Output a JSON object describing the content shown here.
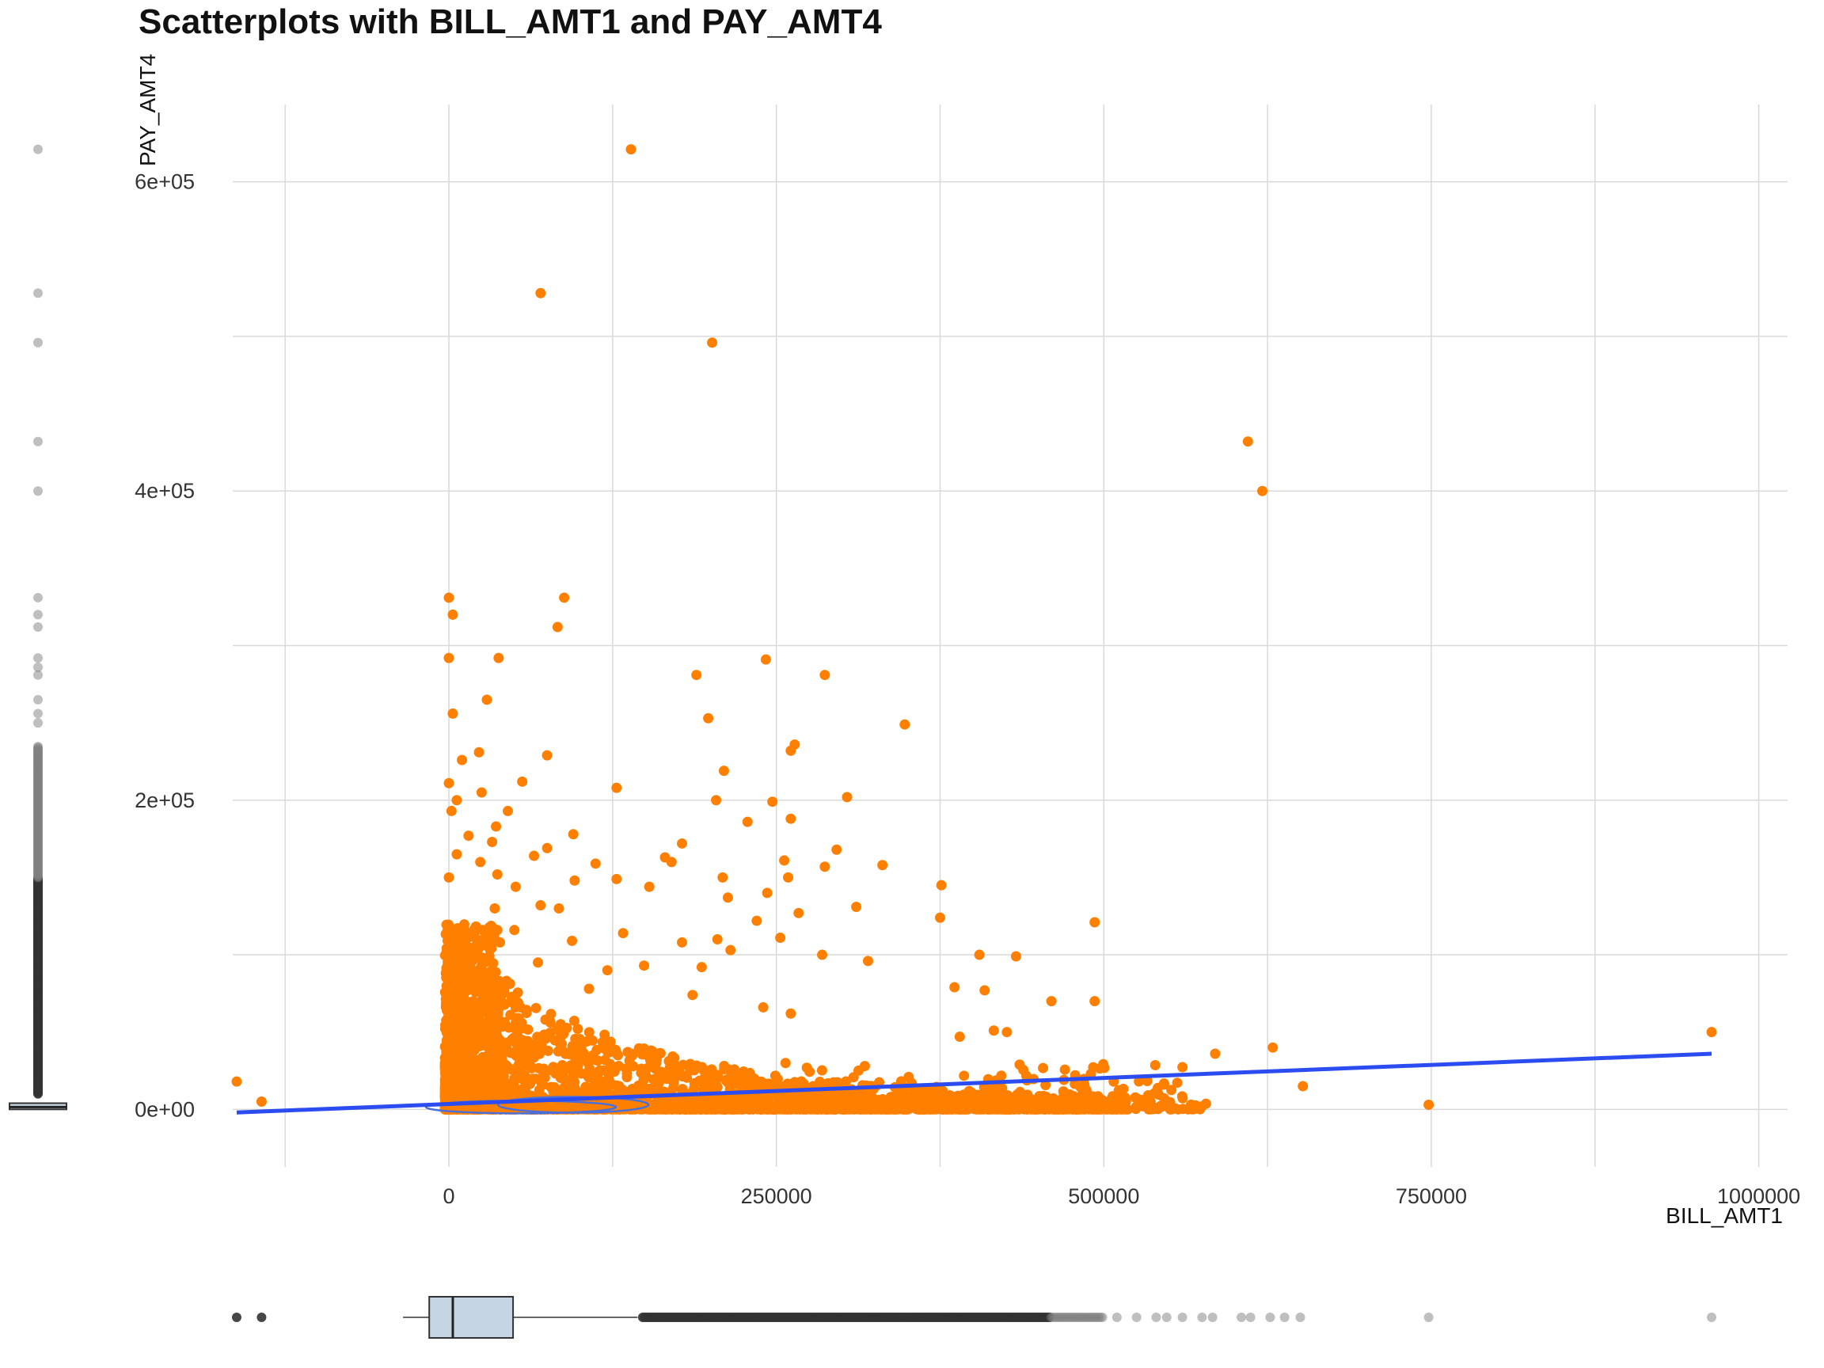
{
  "chart_data": {
    "type": "scatter",
    "title": "Scatterplots with BILL_AMT1 and PAY_AMT4",
    "xlabel": "BILL_AMT1",
    "ylabel": "PAY_AMT4",
    "xlim": [
      -165000,
      1022000
    ],
    "ylim": [
      -28000,
      650000
    ],
    "x_ticks": [
      0,
      250000,
      500000,
      750000,
      1000000
    ],
    "x_tick_labels": [
      "0",
      "250000",
      "500000",
      "750000",
      "1000000"
    ],
    "y_ticks": [
      0,
      200000,
      400000,
      600000
    ],
    "y_tick_labels": [
      "0e+00",
      "2e+05",
      "4e+05",
      "6e+05"
    ],
    "grid": true,
    "legend": "none",
    "point_color": "#ff8000",
    "line_color": "#2b4cf0",
    "marginal_color": "#808080",
    "box_fill": "#c6d5e4",
    "outlier_points": [
      [
        139000,
        621000
      ],
      [
        70000,
        528000
      ],
      [
        201000,
        496000
      ],
      [
        610000,
        432000
      ],
      [
        621000,
        400000
      ],
      [
        88000,
        331000
      ],
      [
        0,
        331000
      ],
      [
        3000,
        320000
      ],
      [
        83000,
        312000
      ],
      [
        38000,
        292000
      ],
      [
        0,
        292000
      ],
      [
        242000,
        291000
      ],
      [
        189000,
        281000
      ],
      [
        287000,
        281000
      ],
      [
        29000,
        265000
      ],
      [
        3000,
        256000
      ],
      [
        198000,
        253000
      ],
      [
        348000,
        249000
      ],
      [
        264000,
        236000
      ],
      [
        261000,
        232000
      ],
      [
        23000,
        231000
      ],
      [
        10000,
        226000
      ],
      [
        75000,
        229000
      ],
      [
        210000,
        219000
      ],
      [
        56000,
        212000
      ],
      [
        128000,
        208000
      ],
      [
        0,
        211000
      ],
      [
        25000,
        205000
      ],
      [
        304000,
        202000
      ],
      [
        204000,
        200000
      ],
      [
        247000,
        199000
      ],
      [
        6000,
        200000
      ],
      [
        45000,
        193000
      ],
      [
        2000,
        193000
      ],
      [
        261000,
        188000
      ],
      [
        228000,
        186000
      ],
      [
        36000,
        183000
      ],
      [
        95000,
        178000
      ],
      [
        178000,
        172000
      ],
      [
        15000,
        177000
      ],
      [
        33000,
        173000
      ],
      [
        75000,
        169000
      ],
      [
        296000,
        168000
      ],
      [
        6000,
        165000
      ],
      [
        65000,
        164000
      ],
      [
        165000,
        163000
      ],
      [
        256000,
        161000
      ],
      [
        112000,
        159000
      ],
      [
        331000,
        158000
      ],
      [
        287000,
        157000
      ],
      [
        24000,
        160000
      ],
      [
        170000,
        160000
      ],
      [
        209000,
        150000
      ],
      [
        259000,
        150000
      ],
      [
        128000,
        149000
      ],
      [
        96000,
        148000
      ],
      [
        37000,
        152000
      ],
      [
        0,
        150000
      ],
      [
        376000,
        145000
      ],
      [
        153000,
        144000
      ],
      [
        51000,
        144000
      ],
      [
        243000,
        140000
      ],
      [
        213000,
        137000
      ],
      [
        70000,
        132000
      ],
      [
        35000,
        130000
      ],
      [
        311000,
        131000
      ],
      [
        84000,
        130000
      ],
      [
        267000,
        127000
      ],
      [
        235000,
        122000
      ],
      [
        375000,
        124000
      ],
      [
        493000,
        121000
      ],
      [
        50000,
        116000
      ],
      [
        0,
        118000
      ],
      [
        4000,
        115000
      ],
      [
        133000,
        114000
      ],
      [
        205000,
        110000
      ],
      [
        253000,
        111000
      ],
      [
        94000,
        109000
      ],
      [
        39000,
        108000
      ],
      [
        178000,
        108000
      ],
      [
        215000,
        103000
      ],
      [
        285000,
        100000
      ],
      [
        320000,
        96000
      ],
      [
        433000,
        99000
      ],
      [
        405000,
        100000
      ],
      [
        193000,
        92000
      ],
      [
        149000,
        93000
      ],
      [
        68000,
        95000
      ],
      [
        121000,
        90000
      ],
      [
        409000,
        77000
      ],
      [
        386000,
        79000
      ],
      [
        493000,
        70000
      ],
      [
        460000,
        70000
      ],
      [
        186000,
        74000
      ],
      [
        107000,
        78000
      ],
      [
        240000,
        66000
      ],
      [
        261000,
        62000
      ],
      [
        390000,
        47000
      ],
      [
        416000,
        51000
      ],
      [
        426000,
        50000
      ],
      [
        629000,
        40000
      ],
      [
        585000,
        36000
      ],
      [
        964000,
        50000
      ],
      [
        748000,
        3000
      ],
      [
        652000,
        15000
      ],
      [
        -162000,
        18000
      ],
      [
        -143000,
        5000
      ]
    ],
    "dense_cluster_note": "",
    "regression_line": {
      "x1": -162000,
      "y1": -2000,
      "x2": 964000,
      "y2": 36000
    },
    "x_boxplot": {
      "q1": -15000,
      "median": 3000,
      "q3": 49000,
      "whisker_low": -35000,
      "whisker_high": 144000
    },
    "y_boxplot": {
      "q1": 0,
      "median": 1500,
      "q3": 4000,
      "whisker_low": 0,
      "whisker_high": 10000
    }
  }
}
